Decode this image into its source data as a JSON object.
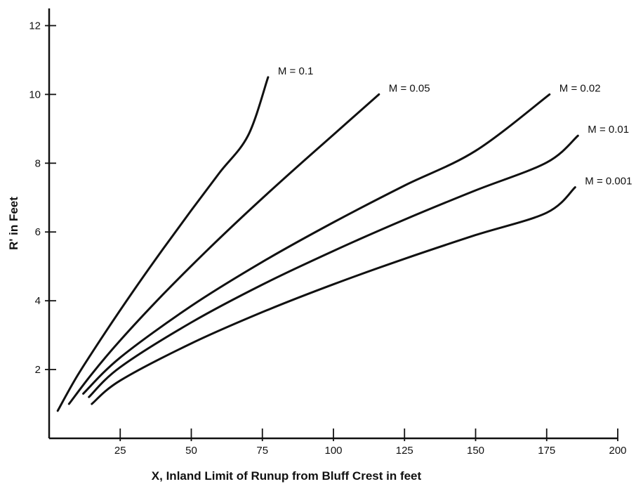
{
  "chart_data": {
    "type": "line",
    "title": "",
    "xlabel": "X, Inland Limit of Runup from Bluff Crest in feet",
    "ylabel": "R' in Feet",
    "xlim": [
      0,
      200
    ],
    "ylim": [
      0,
      12.5
    ],
    "xticks": [
      25,
      50,
      75,
      100,
      125,
      150,
      175,
      200
    ],
    "yticks": [
      2,
      4,
      6,
      8,
      10,
      12
    ],
    "grid": false,
    "legend": "none (series labelled at line ends)",
    "series": [
      {
        "name": "M = 0.1",
        "x": [
          3,
          10,
          20,
          30,
          40,
          50,
          60,
          70,
          77
        ],
        "y": [
          0.8,
          1.83,
          3.11,
          4.33,
          5.5,
          6.63,
          7.73,
          8.81,
          10.5
        ]
      },
      {
        "name": "M = 0.05",
        "x": [
          7,
          15,
          25,
          40,
          55,
          70,
          85,
          100,
          116
        ],
        "y": [
          1.0,
          1.87,
          2.85,
          4.18,
          5.42,
          6.6,
          7.73,
          8.83,
          10.0
        ]
      },
      {
        "name": "M = 0.02",
        "x": [
          12,
          25,
          50,
          75,
          100,
          125,
          150,
          176
        ],
        "y": [
          1.3,
          2.35,
          3.85,
          5.13,
          6.28,
          7.35,
          8.36,
          10.0
        ]
      },
      {
        "name": "M = 0.01",
        "x": [
          14,
          25,
          50,
          75,
          100,
          125,
          150,
          175,
          186
        ],
        "y": [
          1.2,
          2.07,
          3.37,
          4.47,
          5.45,
          6.36,
          7.21,
          8.02,
          8.8
        ]
      },
      {
        "name": "M = 0.001",
        "x": [
          15,
          25,
          50,
          75,
          100,
          125,
          150,
          175,
          185
        ],
        "y": [
          1.0,
          1.68,
          2.76,
          3.67,
          4.48,
          5.22,
          5.91,
          6.56,
          7.3
        ]
      }
    ]
  }
}
